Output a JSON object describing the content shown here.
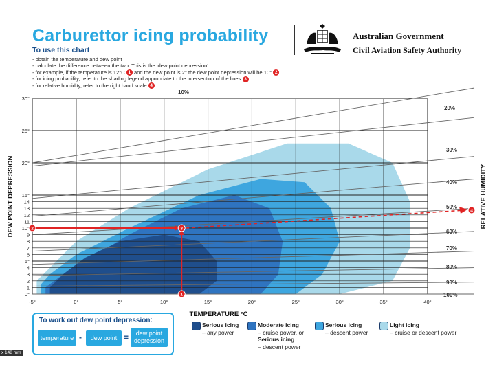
{
  "header": {
    "title": "Carburettor icing probability",
    "subtitle": "To use this chart",
    "instructions": [
      {
        "text": "- obtain the temperature and dew point",
        "badge": ""
      },
      {
        "text": "- calculate the difference between the two. This is the ‘dew point depression’",
        "badge": ""
      },
      {
        "text": "- for example, if the temperature is 12°C",
        "badge": "1",
        "text2": " and the dew point is 2° the dew point depression will be 10°",
        "badge2": "2"
      },
      {
        "text": "- for icing probability, refer to the shading legend appropriate to the intersection of the lines",
        "badge": "3"
      },
      {
        "text": "- for relative humidity, refer to the right hand scale",
        "badge": "4"
      }
    ],
    "org_line1": "Australian Government",
    "org_line2": "Civil Aviation Safety Authority"
  },
  "how_to": {
    "title": "To work out dew point depression:",
    "temperature": "temperature",
    "minus": "-",
    "dew_point": "dew point",
    "equals": "=",
    "result": "dew point depression"
  },
  "legend": [
    {
      "title": "Serious icing",
      "desc": "– any power",
      "color": "#1f4e8c"
    },
    {
      "title": "Moderate icing",
      "desc": "– cruise power, or",
      "title2": "Serious icing",
      "desc2": "– descent power",
      "color": "#2f74c0"
    },
    {
      "title": "Serious icing",
      "desc": "– descent power",
      "color": "#3ea6df"
    },
    {
      "title": "Light icing",
      "desc": "– cruise or descent power",
      "color": "#a9d9ea"
    }
  ],
  "scale_note": "x 148 mm",
  "chart_data": {
    "type": "area",
    "xlabel": "TEMPERATURE °C",
    "ylabel": "DEW POINT DEPRESSION",
    "y2label": "RELATIVE HUMIDITY",
    "xlim": [
      -5,
      40
    ],
    "ylim": [
      0,
      30
    ],
    "x_ticks": [
      -5,
      0,
      5,
      10,
      15,
      20,
      25,
      30,
      35,
      40
    ],
    "x_tick_labels": [
      "-5°",
      "0°",
      "5°",
      "10°",
      "15°",
      "20°",
      "25°",
      "30°",
      "35°",
      "40°"
    ],
    "y_ticks": [
      0,
      1,
      2,
      3,
      4,
      5,
      6,
      7,
      8,
      9,
      10,
      11,
      12,
      13,
      14,
      15,
      20,
      25,
      30
    ],
    "y_tick_labels": [
      "0°",
      "1",
      "2",
      "3",
      "4",
      "5°",
      "6",
      "7",
      "8",
      "9",
      "10°",
      "11",
      "12",
      "13",
      "14",
      "15°",
      "20°",
      "25°",
      "30°"
    ],
    "grid": true,
    "humidity_lines": [
      {
        "label": "10%",
        "y_at_left": 20,
        "y_at_right": 38
      },
      {
        "label": "20%",
        "y_at_left": 19.5,
        "y_at_right": 27
      },
      {
        "label": "30%",
        "y_at_left": 14.5,
        "y_at_right": 21
      },
      {
        "label": "40%",
        "y_at_left": 11.8,
        "y_at_right": 17.5
      },
      {
        "label": "50%",
        "y_at_left": 9,
        "y_at_right": 13
      },
      {
        "label": "60%",
        "y_at_left": 6.5,
        "y_at_right": 9.5
      },
      {
        "label": "70%",
        "y_at_left": 4.5,
        "y_at_right": 6.5
      },
      {
        "label": "80%",
        "y_at_left": 2.8,
        "y_at_right": 4
      },
      {
        "label": "90%",
        "y_at_left": 1.2,
        "y_at_right": 1.8
      },
      {
        "label": "100%",
        "y_at_left": 0,
        "y_at_right": 0
      }
    ],
    "regions": [
      {
        "name": "Light icing",
        "color": "#a9d9ea",
        "polygon": [
          [
            -4.5,
            0
          ],
          [
            30,
            0
          ],
          [
            36,
            2
          ],
          [
            38,
            7
          ],
          [
            38,
            14
          ],
          [
            36,
            20
          ],
          [
            31,
            23
          ],
          [
            24,
            23
          ],
          [
            15,
            19
          ],
          [
            6,
            13
          ],
          [
            0,
            8
          ],
          [
            -3,
            4
          ],
          [
            -4.5,
            2
          ]
        ]
      },
      {
        "name": "Serious icing (descent power)",
        "color": "#3ea6df",
        "polygon": [
          [
            -4,
            0
          ],
          [
            25,
            0
          ],
          [
            28,
            3
          ],
          [
            30,
            8
          ],
          [
            29,
            13
          ],
          [
            26,
            17
          ],
          [
            21,
            17.5
          ],
          [
            14,
            15
          ],
          [
            6,
            10
          ],
          [
            0,
            6
          ],
          [
            -3,
            3
          ],
          [
            -4,
            1.5
          ]
        ]
      },
      {
        "name": "Moderate icing (cruise) / Serious icing (descent)",
        "color": "#2f74c0",
        "polygon": [
          [
            -3.5,
            0
          ],
          [
            21,
            0
          ],
          [
            23,
            3
          ],
          [
            23.5,
            8
          ],
          [
            22,
            13
          ],
          [
            18,
            15
          ],
          [
            12,
            13
          ],
          [
            6,
            9
          ],
          [
            1,
            5
          ],
          [
            -2,
            2.5
          ],
          [
            -3.5,
            1
          ]
        ]
      },
      {
        "name": "Serious icing (any power)",
        "color": "#1f4e8c",
        "polygon": [
          [
            -3,
            0
          ],
          [
            14,
            0
          ],
          [
            16,
            2
          ],
          [
            16,
            5
          ],
          [
            14,
            8
          ],
          [
            10,
            9
          ],
          [
            5,
            8
          ],
          [
            1,
            5.5
          ],
          [
            -1.5,
            3
          ],
          [
            -3,
            1
          ]
        ]
      }
    ],
    "example": {
      "temperature": 12,
      "dew_point_depression": 10,
      "relative_humidity_label": "4",
      "markers": [
        "1",
        "2",
        "3",
        "4"
      ]
    }
  }
}
